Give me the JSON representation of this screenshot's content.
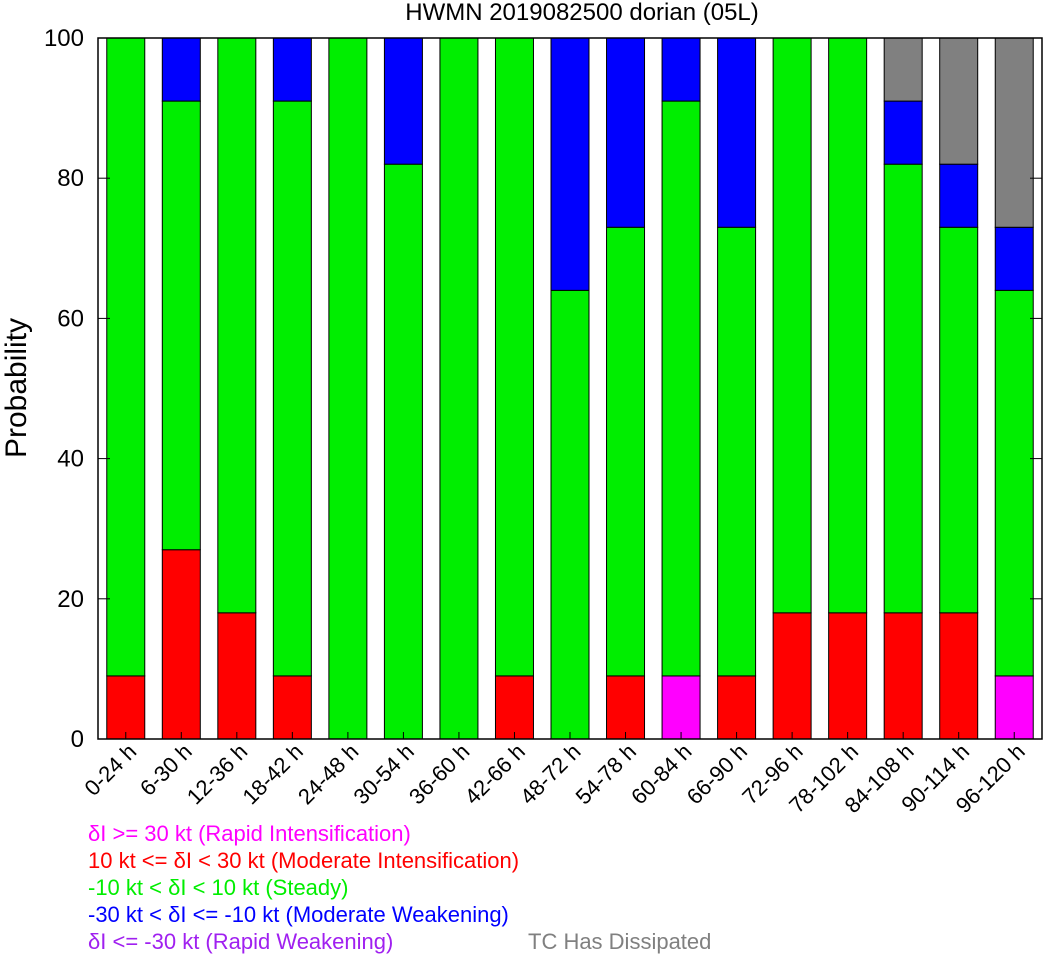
{
  "chart_data": {
    "type": "bar",
    "stacked": true,
    "title": "HWMN 2019082500 dorian (05L)",
    "ylabel": "Probability",
    "xlabel": "",
    "ylim": [
      0,
      100
    ],
    "yticks": [
      0,
      20,
      40,
      60,
      80,
      100
    ],
    "grid": false,
    "categories": [
      "0-24 h",
      "6-30 h",
      "12-36 h",
      "18-42 h",
      "24-48 h",
      "30-54 h",
      "36-60 h",
      "42-66 h",
      "48-72 h",
      "54-78 h",
      "60-84 h",
      "66-90 h",
      "72-96 h",
      "78-102 h",
      "84-108 h",
      "90-114 h",
      "96-120 h"
    ],
    "series": [
      {
        "name": "δI >= 30 kt (Rapid Intensification)",
        "color": "#ff00ff",
        "values": [
          0,
          0,
          0,
          0,
          0,
          0,
          0,
          0,
          0,
          0,
          9,
          0,
          0,
          0,
          0,
          0,
          9
        ]
      },
      {
        "name": "10 kt <= δI < 30 kt (Moderate Intensification)",
        "color": "#ff0000",
        "values": [
          9,
          27,
          18,
          9,
          0,
          0,
          0,
          9,
          0,
          9,
          0,
          9,
          18,
          18,
          18,
          18,
          0
        ]
      },
      {
        "name": "-10 kt < δI < 10 kt (Steady)",
        "color": "#00ee00",
        "values": [
          91,
          64,
          82,
          82,
          100,
          82,
          100,
          91,
          64,
          64,
          82,
          64,
          82,
          82,
          64,
          55,
          55
        ]
      },
      {
        "name": "-30 kt < δI <= -10 kt (Moderate Weakening)",
        "color": "#0000ff",
        "values": [
          0,
          9,
          0,
          9,
          0,
          18,
          0,
          0,
          36,
          27,
          9,
          27,
          0,
          0,
          9,
          9,
          9
        ]
      },
      {
        "name": "δI <= -30 kt (Rapid Weakening)",
        "color": "#a020f0",
        "values": [
          0,
          0,
          0,
          0,
          0,
          0,
          0,
          0,
          0,
          0,
          0,
          0,
          0,
          0,
          0,
          0,
          0
        ]
      },
      {
        "name": "TC Has Dissipated",
        "color": "#808080",
        "values": [
          0,
          0,
          0,
          0,
          0,
          0,
          0,
          0,
          0,
          0,
          0,
          0,
          0,
          0,
          9,
          18,
          27
        ]
      }
    ]
  }
}
